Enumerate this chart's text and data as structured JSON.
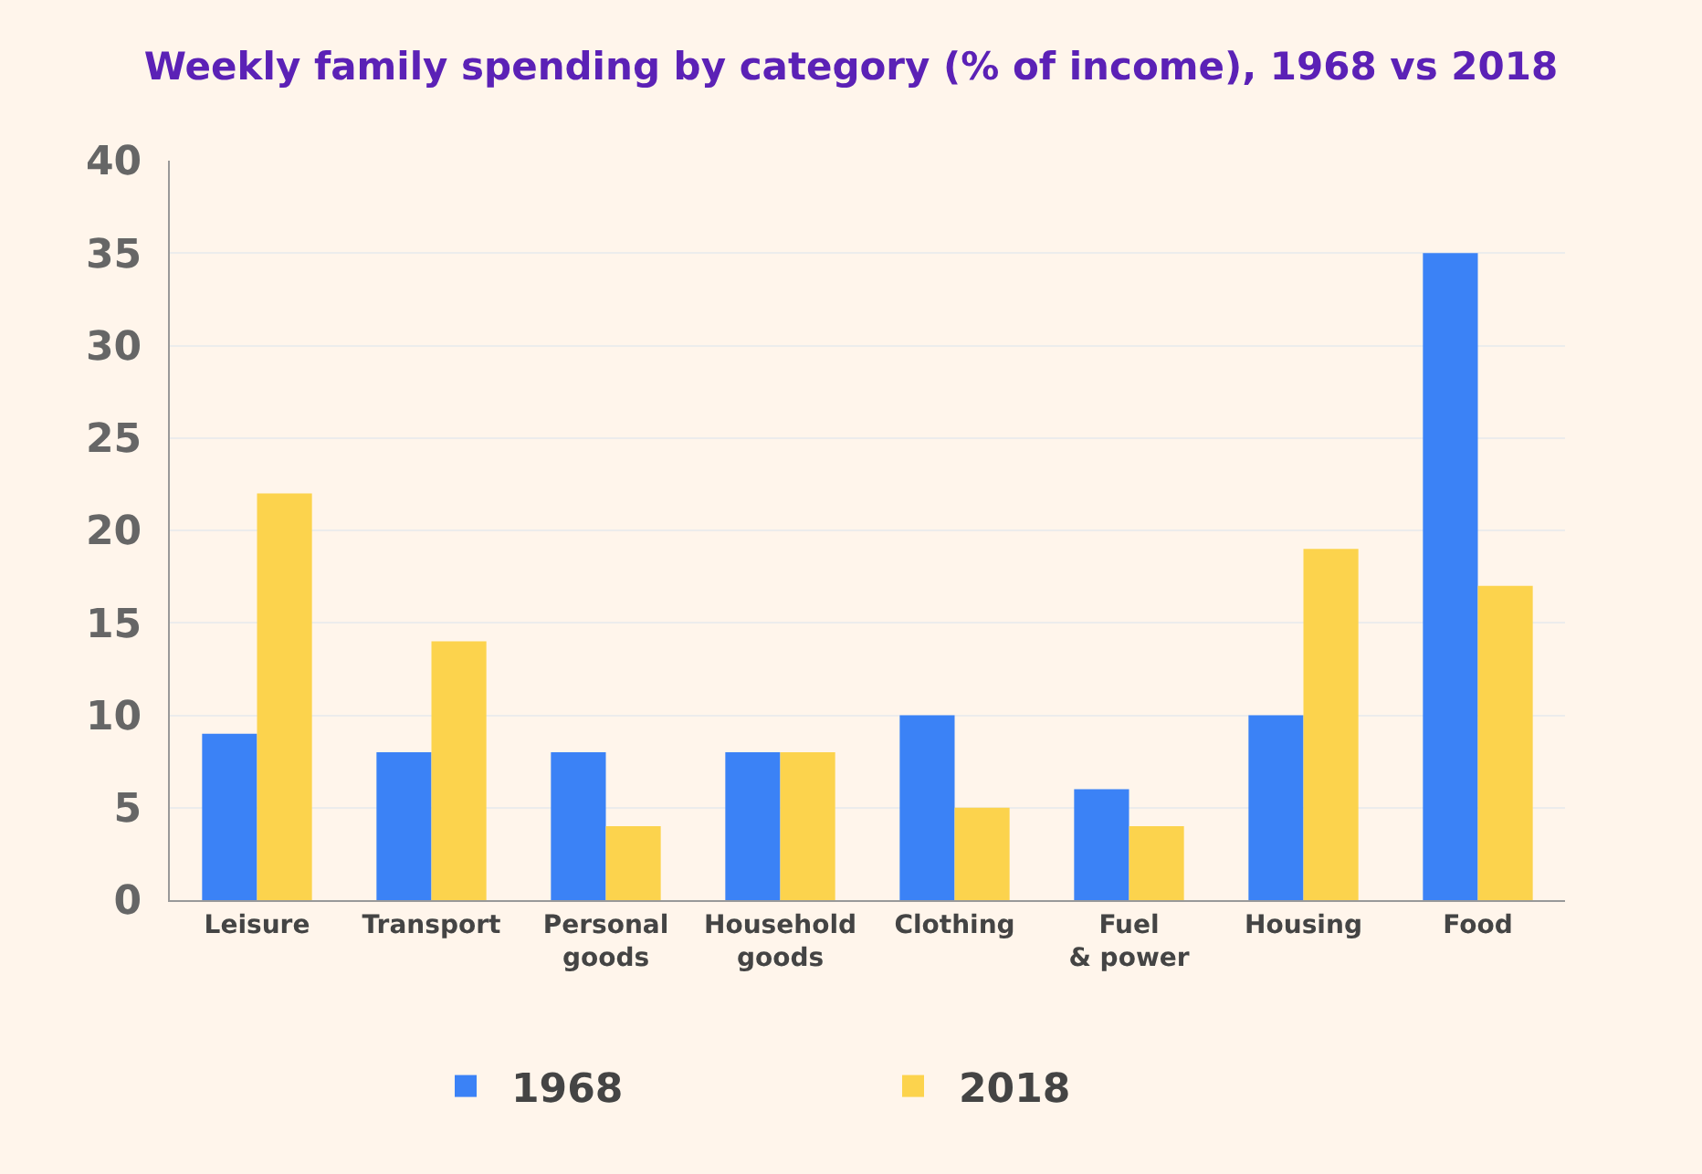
{
  "chart_data": {
    "type": "bar",
    "title": "Weekly family spending by category (% of income), 1968 vs 2018",
    "categories": [
      "Leisure",
      "Transport",
      "Personal goods",
      "Household goods",
      "Clothing",
      "Fuel & power",
      "Housing",
      "Food"
    ],
    "series": [
      {
        "name": "1968",
        "color": "#3b82f6",
        "values": [
          9,
          8,
          8,
          8,
          10,
          6,
          10,
          35
        ]
      },
      {
        "name": "2018",
        "color": "#fcd34d",
        "values": [
          22,
          14,
          4,
          8,
          5,
          4,
          19,
          17
        ]
      }
    ],
    "ylim": [
      0,
      40
    ],
    "yticks": [
      0,
      5,
      10,
      15,
      20,
      25,
      30,
      35,
      40
    ],
    "grid": "y",
    "legend": "bottom"
  }
}
